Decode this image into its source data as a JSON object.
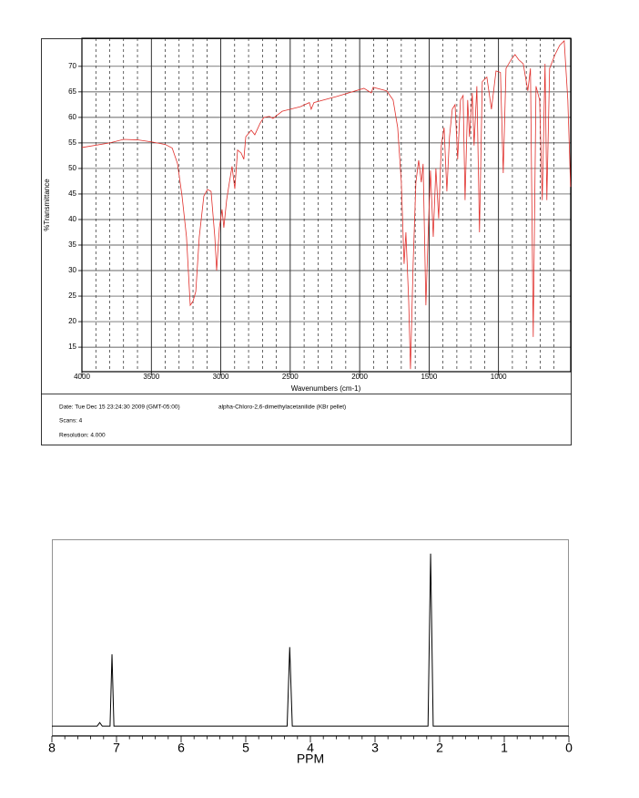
{
  "chart_data": [
    {
      "type": "line",
      "xlabel": "Wavenumbers (cm-1)",
      "ylabel": "%Transmittance",
      "annotations": [
        "Date: Tue Dec 15 23:24:30 2009 (GMT-05:00)",
        "alpha-Chloro-2,6-dimethylacetanilide (KBr pellet)",
        "Scans: 4",
        "Resolution:  4.000"
      ],
      "xlim": [
        4000,
        480
      ],
      "ylim": [
        10.2,
        75.5
      ],
      "xticks": [
        4000,
        3500,
        3000,
        2500,
        2000,
        1500,
        1000
      ],
      "yticks": [
        15,
        20,
        25,
        30,
        35,
        40,
        45,
        50,
        55,
        60,
        65,
        70
      ],
      "grid": true,
      "series": [
        {
          "color": "#e0302c",
          "x": [
            4000,
            3800,
            3700,
            3600,
            3500,
            3400,
            3350,
            3312,
            3279,
            3247,
            3220,
            3200,
            3180,
            3155,
            3122,
            3096,
            3070,
            3043,
            3030,
            3010,
            2991,
            2978,
            2958,
            2938,
            2919,
            2899,
            2879,
            2853,
            2834,
            2820,
            2781,
            2755,
            2716,
            2690,
            2650,
            2624,
            2558,
            2427,
            2362,
            2349,
            2329,
            2165,
            1969,
            1916,
            1903,
            1805,
            1759,
            1726,
            1700,
            1680,
            1667,
            1647,
            1634,
            1615,
            1595,
            1575,
            1556,
            1543,
            1523,
            1503,
            1490,
            1470,
            1451,
            1431,
            1412,
            1392,
            1372,
            1353,
            1333,
            1313,
            1294,
            1274,
            1255,
            1241,
            1222,
            1209,
            1189,
            1176,
            1156,
            1137,
            1117,
            1084,
            1051,
            1018,
            986,
            966,
            946,
            907,
            881,
            855,
            822,
            789,
            770,
            750,
            730,
            704,
            685,
            665,
            652,
            632,
            593,
            560,
            527,
            501,
            481
          ],
          "values": [
            54.1,
            55,
            55.7,
            55.6,
            55.2,
            54.7,
            54,
            51,
            44.6,
            36.6,
            23.2,
            24,
            25.9,
            36.6,
            44.6,
            45.9,
            45.5,
            36.6,
            30,
            38.4,
            42,
            38.4,
            43.8,
            47.3,
            50.4,
            46,
            53.6,
            53,
            51.8,
            56.2,
            57.5,
            56.6,
            58.9,
            60,
            60.2,
            59.8,
            61.2,
            62.1,
            62.9,
            61.6,
            62.9,
            64.1,
            65.7,
            64.8,
            65.9,
            65.2,
            63.4,
            58,
            47.3,
            31.3,
            37.5,
            24.1,
            10.7,
            31.3,
            47.3,
            51.6,
            47.3,
            50.9,
            23.2,
            40.2,
            49.6,
            36.6,
            50,
            40.2,
            54.5,
            58,
            45.5,
            56.2,
            61.6,
            62.5,
            51.8,
            63.4,
            64.3,
            43.8,
            63.4,
            56.2,
            64.8,
            54.5,
            66.1,
            37.5,
            67,
            67.9,
            61.6,
            69.1,
            68.8,
            49.1,
            69.6,
            71.4,
            72.3,
            71.3,
            70.5,
            65.2,
            69.6,
            17,
            66.1,
            63.4,
            43.8,
            70.5,
            43.8,
            69.6,
            72.3,
            74.1,
            75,
            63.4,
            46.4
          ]
        }
      ]
    },
    {
      "type": "line",
      "xlabel": "PPM",
      "xlim": [
        8,
        0
      ],
      "ylim": [
        -5.5,
        104
      ],
      "xticks": [
        8,
        7,
        6,
        5,
        4,
        3,
        2,
        1,
        0
      ],
      "grid": false,
      "series": [
        {
          "color": "#000000",
          "x": [
            8,
            7.3,
            7.26,
            7.22,
            7.1,
            7.07,
            7.04,
            4.36,
            4.32,
            4.28,
            2.18,
            2.14,
            2.1,
            0
          ],
          "values": [
            0,
            0,
            2,
            0,
            0,
            40,
            0,
            0,
            44,
            0,
            0,
            96,
            0,
            0
          ]
        }
      ]
    }
  ]
}
